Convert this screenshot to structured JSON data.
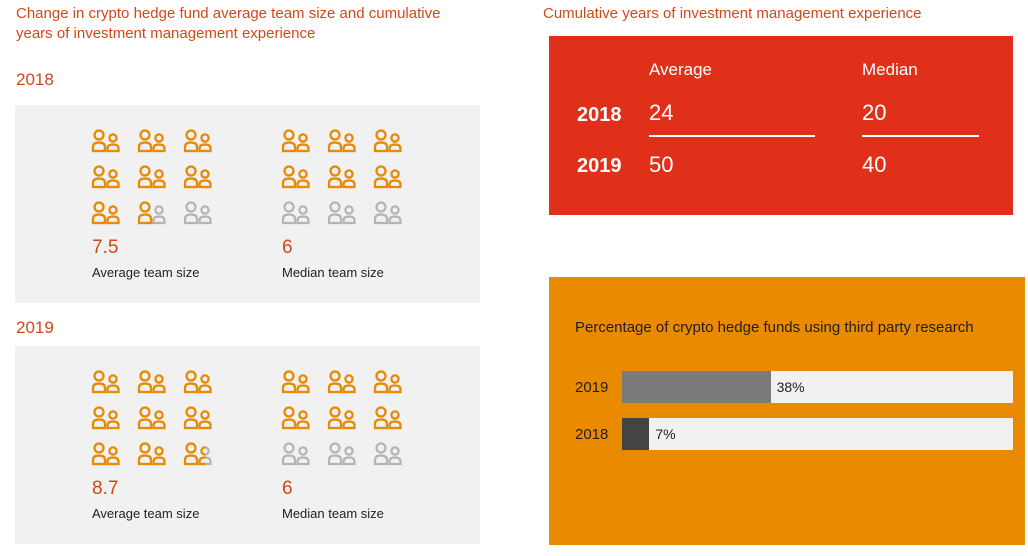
{
  "left_title": "Change in crypto hedge fund average team size and cumulative years of investment management experience",
  "right_title": "Cumulative years of investment management experience",
  "colors": {
    "accent": "#d0491a",
    "icon_filled": "#e98a00",
    "icon_empty": "#b4b4b4",
    "red_box": "#e03019",
    "orange_box": "#e98a00",
    "bar_2019": "#7a7a7a",
    "bar_2018": "#444444"
  },
  "team_size": [
    {
      "year": "2018",
      "average": {
        "value": "7.5",
        "label": "Average team size",
        "filled_fraction": 0.833
      },
      "median": {
        "value": "6",
        "label": "Median team size",
        "filled_fraction": 0.667
      }
    },
    {
      "year": "2019",
      "average": {
        "value": "8.7",
        "label": "Average team size",
        "filled_fraction": 0.967
      },
      "median": {
        "value": "6",
        "label": "Median team size",
        "filled_fraction": 0.667
      }
    }
  ],
  "experience": {
    "headers": [
      "Average",
      "Median"
    ],
    "rows": [
      {
        "year": "2018",
        "average": "24",
        "median": "20"
      },
      {
        "year": "2019",
        "average": "50",
        "median": "40"
      }
    ]
  },
  "chart_data": {
    "type": "bar",
    "title": "Percentage of crypto hedge funds using third party research",
    "categories": [
      "2019",
      "2018"
    ],
    "values": [
      38,
      7
    ],
    "value_labels": [
      "38%",
      "7%"
    ],
    "xlim": [
      0,
      100
    ]
  }
}
